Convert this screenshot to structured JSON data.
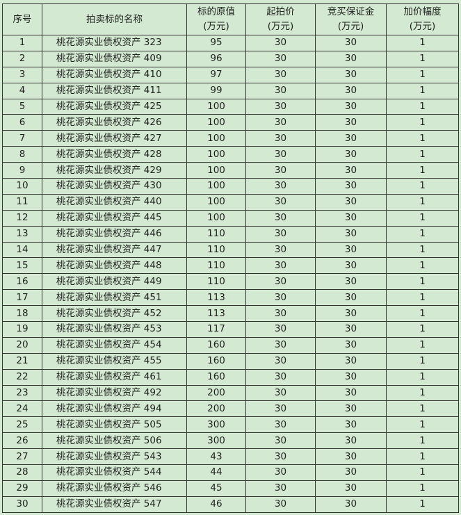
{
  "headers": {
    "index": "序号",
    "name": "拍卖标的名称",
    "original_value": "标的原值",
    "starting_price": "起拍价",
    "deposit": "竞买保证金",
    "increment": "加价幅度",
    "unit": "(万元)"
  },
  "rows": [
    [
      "1",
      "桃花源实业债权资产 323",
      "95",
      "30",
      "30",
      "1"
    ],
    [
      "2",
      "桃花源实业债权资产 409",
      "96",
      "30",
      "30",
      "1"
    ],
    [
      "3",
      "桃花源实业债权资产 410",
      "97",
      "30",
      "30",
      "1"
    ],
    [
      "4",
      "桃花源实业债权资产 411",
      "99",
      "30",
      "30",
      "1"
    ],
    [
      "5",
      "桃花源实业债权资产 425",
      "100",
      "30",
      "30",
      "1"
    ],
    [
      "6",
      "桃花源实业债权资产 426",
      "100",
      "30",
      "30",
      "1"
    ],
    [
      "7",
      "桃花源实业债权资产 427",
      "100",
      "30",
      "30",
      "1"
    ],
    [
      "8",
      "桃花源实业债权资产 428",
      "100",
      "30",
      "30",
      "1"
    ],
    [
      "9",
      "桃花源实业债权资产 429",
      "100",
      "30",
      "30",
      "1"
    ],
    [
      "10",
      "桃花源实业债权资产 430",
      "100",
      "30",
      "30",
      "1"
    ],
    [
      "11",
      "桃花源实业债权资产 440",
      "100",
      "30",
      "30",
      "1"
    ],
    [
      "12",
      "桃花源实业债权资产 445",
      "100",
      "30",
      "30",
      "1"
    ],
    [
      "13",
      "桃花源实业债权资产 446",
      "110",
      "30",
      "30",
      "1"
    ],
    [
      "14",
      "桃花源实业债权资产 447",
      "110",
      "30",
      "30",
      "1"
    ],
    [
      "15",
      "桃花源实业债权资产 448",
      "110",
      "30",
      "30",
      "1"
    ],
    [
      "16",
      "桃花源实业债权资产 449",
      "110",
      "30",
      "30",
      "1"
    ],
    [
      "17",
      "桃花源实业债权资产 451",
      "113",
      "30",
      "30",
      "1"
    ],
    [
      "18",
      "桃花源实业债权资产 452",
      "113",
      "30",
      "30",
      "1"
    ],
    [
      "19",
      "桃花源实业债权资产 453",
      "117",
      "30",
      "30",
      "1"
    ],
    [
      "20",
      "桃花源实业债权资产 454",
      "160",
      "30",
      "30",
      "1"
    ],
    [
      "21",
      "桃花源实业债权资产 455",
      "160",
      "30",
      "30",
      "1"
    ],
    [
      "22",
      "桃花源实业债权资产 461",
      "160",
      "30",
      "30",
      "1"
    ],
    [
      "23",
      "桃花源实业债权资产 492",
      "200",
      "30",
      "30",
      "1"
    ],
    [
      "24",
      "桃花源实业债权资产 494",
      "200",
      "30",
      "30",
      "1"
    ],
    [
      "25",
      "桃花源实业债权资产 505",
      "300",
      "30",
      "30",
      "1"
    ],
    [
      "26",
      "桃花源实业债权资产 506",
      "300",
      "30",
      "30",
      "1"
    ],
    [
      "27",
      "桃花源实业债权资产 543",
      "43",
      "30",
      "30",
      "1"
    ],
    [
      "28",
      "桃花源实业债权资产 544",
      "44",
      "30",
      "30",
      "1"
    ],
    [
      "29",
      "桃花源实业债权资产 546",
      "45",
      "30",
      "30",
      "1"
    ],
    [
      "30",
      "桃花源实业债权资产 547",
      "46",
      "30",
      "30",
      "1"
    ]
  ],
  "colors": {
    "background": "#d3e9d1",
    "border": "#333333"
  }
}
